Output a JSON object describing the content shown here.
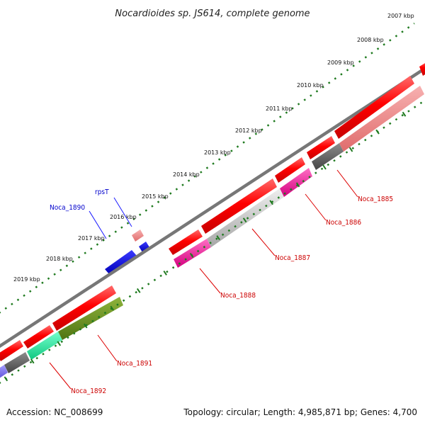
{
  "header": {
    "title": "Nocardioides sp. JS614, complete genome"
  },
  "footer": {
    "accession": "Accession: NC_008699",
    "summary": "Topology: circular; Length: 4,985,871 bp; Genes: 4,700"
  },
  "scale_ticks": [
    {
      "label": "2007 kbp"
    },
    {
      "label": "2008 kbp"
    },
    {
      "label": "2009 kbp"
    },
    {
      "label": "2010 kbp"
    },
    {
      "label": "2011 kbp"
    },
    {
      "label": "2012 kbp"
    },
    {
      "label": "2013 kbp"
    },
    {
      "label": "2014 kbp"
    },
    {
      "label": "2015 kbp"
    },
    {
      "label": "2016 kbp"
    },
    {
      "label": "2017 kbp"
    },
    {
      "label": "2018 kbp"
    },
    {
      "label": "2019 kbp"
    }
  ],
  "gene_labels": [
    {
      "name": "Noca_1885",
      "color": "#cc0000"
    },
    {
      "name": "Noca_1886",
      "color": "#cc0000"
    },
    {
      "name": "Noca_1887",
      "color": "#cc0000"
    },
    {
      "name": "Noca_1888",
      "color": "#cc0000"
    },
    {
      "name": "Noca_1891",
      "color": "#cc0000"
    },
    {
      "name": "Noca_1892",
      "color": "#cc0000"
    },
    {
      "name": "Noca_1890",
      "color": "#0000cc"
    },
    {
      "name": "rpsT",
      "color": "#0000cc"
    }
  ],
  "colors": {
    "backbone": "#808080",
    "tick_dots": "#1f7a1f",
    "gene_forward": "#ff0000",
    "gene_reverse": "#0000ee"
  }
}
